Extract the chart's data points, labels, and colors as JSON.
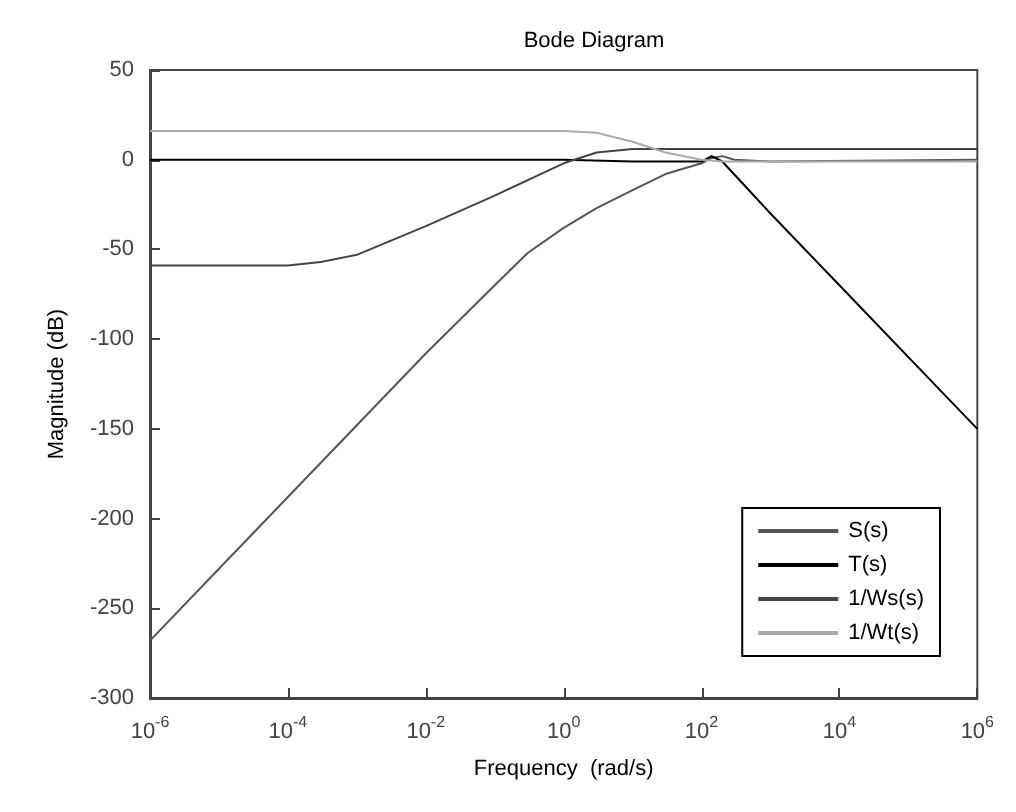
{
  "chart_data": {
    "type": "line",
    "title": "Bode Diagram",
    "xlabel": "Frequency  (rad/s)",
    "ylabel": "Magnitude (dB)",
    "log": "x",
    "xlim": [
      1e-06,
      1000000.0
    ],
    "xticks": [
      {
        "value": 1e-06,
        "label": "10$^{-6}$"
      },
      {
        "value": 0.0001,
        "label": "10$^{-4}$"
      },
      {
        "value": 0.01,
        "label": "10$^{-2}$"
      },
      {
        "value": 1,
        "label": "10$^{0}$"
      },
      {
        "value": 100,
        "label": "10$^{2}$"
      },
      {
        "value": 10000,
        "label": "10$^{4}$"
      },
      {
        "value": 1000000.0,
        "label": "10$^{6}$"
      }
    ],
    "ylim": [
      -300,
      50
    ],
    "yticks": [
      -300,
      -250,
      -200,
      -150,
      -100,
      -50,
      0,
      50
    ],
    "grid": false,
    "legend": "bottom right",
    "marker": "none",
    "series": [
      {
        "name": "S(s)",
        "color": "#555555",
        "x": [
          1e-06,
          1e-05,
          0.0001,
          0.001,
          0.01,
          0.1,
          0.3,
          1,
          3,
          10,
          30,
          100,
          140,
          200,
          300,
          1000,
          1000000.0
        ],
        "values": [
          -268,
          -228,
          -188,
          -148,
          -108,
          -70,
          -52,
          -38,
          -27,
          -17,
          -8,
          -2,
          1,
          2,
          0,
          -1,
          0
        ]
      },
      {
        "name": "T(s)",
        "color": "#000000",
        "x": [
          1e-06,
          1,
          10,
          100,
          140,
          200,
          1000,
          10000,
          100000,
          1000000.0
        ],
        "values": [
          0,
          0,
          -1,
          -1,
          2,
          -1,
          -30,
          -70,
          -110,
          -150
        ]
      },
      {
        "name": "1/Ws(s)",
        "color": "#444444",
        "x": [
          1e-06,
          0.0001,
          0.0003,
          0.001,
          0.01,
          0.1,
          1,
          3,
          10,
          1000000.0
        ],
        "values": [
          -59,
          -59,
          -57,
          -53,
          -37,
          -20,
          -2,
          4,
          6,
          6
        ]
      },
      {
        "name": "1/Wt(s)",
        "color": "#aaaaaa",
        "x": [
          1e-06,
          1,
          3,
          10,
          30,
          100,
          200,
          1000000.0
        ],
        "values": [
          16,
          16,
          15,
          10,
          4,
          0,
          -1,
          -1
        ]
      }
    ]
  }
}
